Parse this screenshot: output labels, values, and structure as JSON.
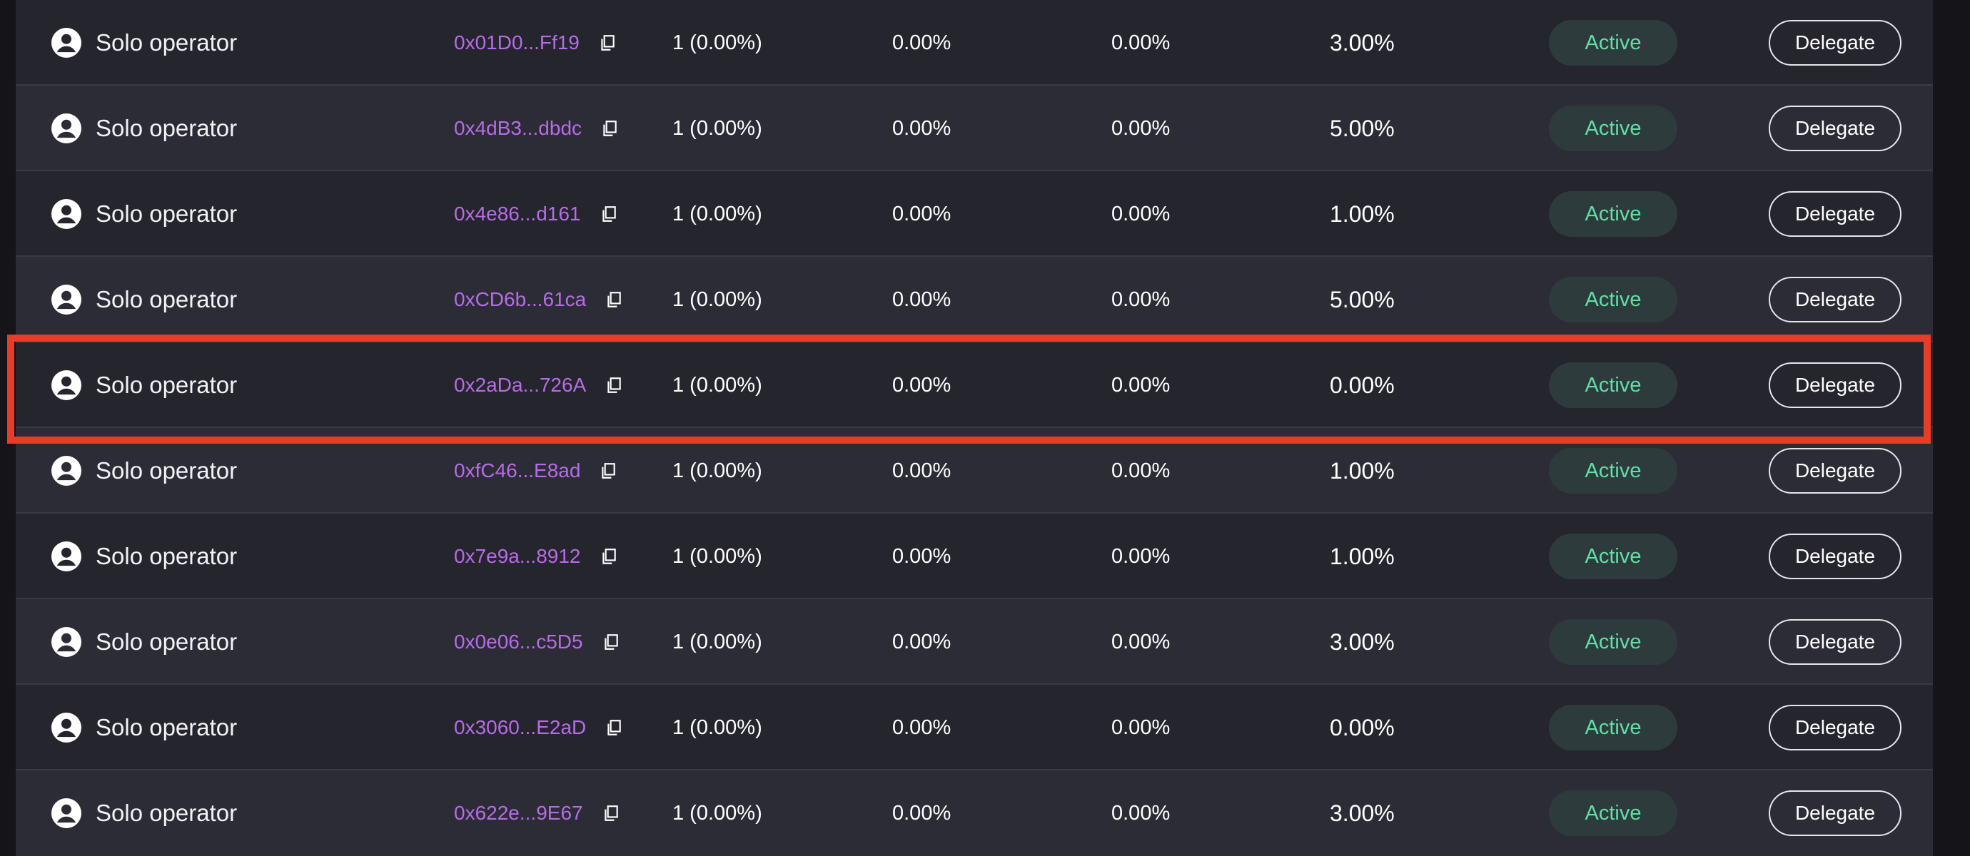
{
  "icons": {
    "avatar": "user-circle-icon",
    "copy": "copy-icon"
  },
  "colors": {
    "address": "#b86be8",
    "status_text": "#5fe0a6",
    "status_bg": "#2e3b3d",
    "highlight": "#e63c28"
  },
  "rows": [
    {
      "name": "Solo operator",
      "address": "0x01D0...Ff19",
      "stake": "1 (0.00%)",
      "col_a": "0.00%",
      "col_b": "0.00%",
      "fee": "3.00%",
      "status": "Active",
      "action": "Delegate"
    },
    {
      "name": "Solo operator",
      "address": "0x4dB3...dbdc",
      "stake": "1 (0.00%)",
      "col_a": "0.00%",
      "col_b": "0.00%",
      "fee": "5.00%",
      "status": "Active",
      "action": "Delegate"
    },
    {
      "name": "Solo operator",
      "address": "0x4e86...d161",
      "stake": "1 (0.00%)",
      "col_a": "0.00%",
      "col_b": "0.00%",
      "fee": "1.00%",
      "status": "Active",
      "action": "Delegate"
    },
    {
      "name": "Solo operator",
      "address": "0xCD6b...61ca",
      "stake": "1 (0.00%)",
      "col_a": "0.00%",
      "col_b": "0.00%",
      "fee": "5.00%",
      "status": "Active",
      "action": "Delegate"
    },
    {
      "name": "Solo operator",
      "address": "0x2aDa...726A",
      "stake": "1 (0.00%)",
      "col_a": "0.00%",
      "col_b": "0.00%",
      "fee": "0.00%",
      "status": "Active",
      "action": "Delegate"
    },
    {
      "name": "Solo operator",
      "address": "0xfC46...E8ad",
      "stake": "1 (0.00%)",
      "col_a": "0.00%",
      "col_b": "0.00%",
      "fee": "1.00%",
      "status": "Active",
      "action": "Delegate"
    },
    {
      "name": "Solo operator",
      "address": "0x7e9a...8912",
      "stake": "1 (0.00%)",
      "col_a": "0.00%",
      "col_b": "0.00%",
      "fee": "1.00%",
      "status": "Active",
      "action": "Delegate"
    },
    {
      "name": "Solo operator",
      "address": "0x0e06...c5D5",
      "stake": "1 (0.00%)",
      "col_a": "0.00%",
      "col_b": "0.00%",
      "fee": "3.00%",
      "status": "Active",
      "action": "Delegate"
    },
    {
      "name": "Solo operator",
      "address": "0x3060...E2aD",
      "stake": "1 (0.00%)",
      "col_a": "0.00%",
      "col_b": "0.00%",
      "fee": "0.00%",
      "status": "Active",
      "action": "Delegate"
    },
    {
      "name": "Solo operator",
      "address": "0x622e...9E67",
      "stake": "1 (0.00%)",
      "col_a": "0.00%",
      "col_b": "0.00%",
      "fee": "3.00%",
      "status": "Active",
      "action": "Delegate"
    }
  ]
}
